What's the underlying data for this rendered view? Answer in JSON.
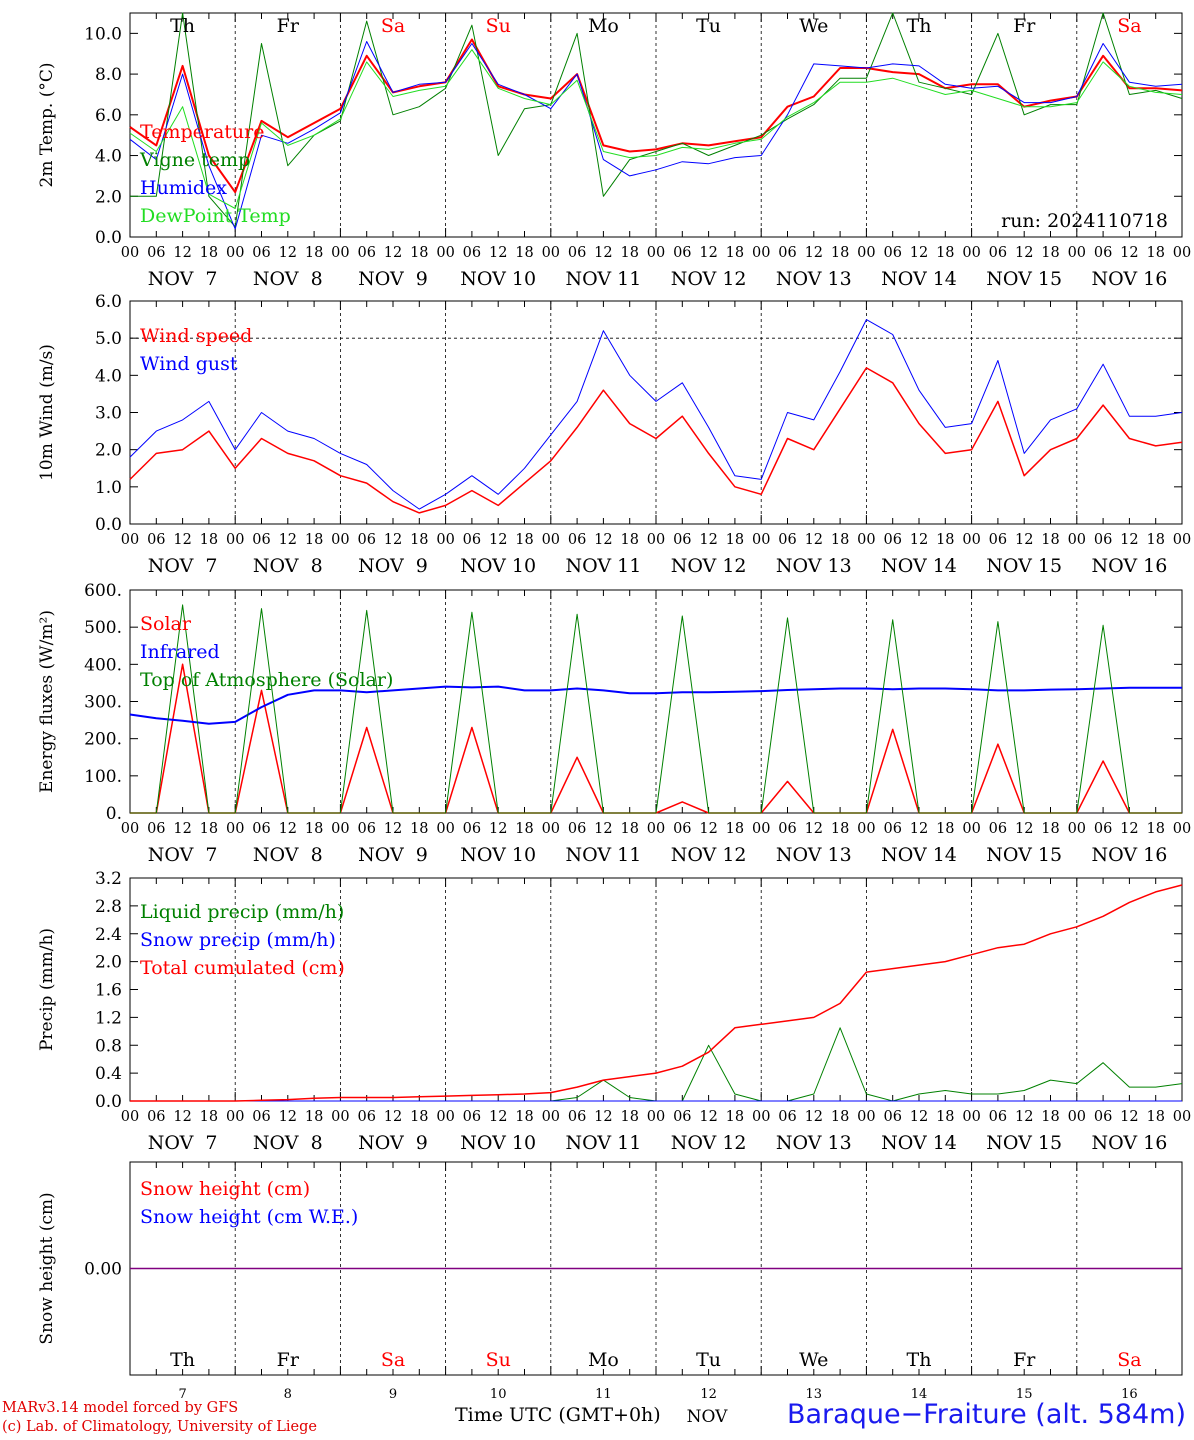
{
  "chart_data": [
    {
      "type": "line",
      "ylabel": "2m Temp. (°C)",
      "ylim": [
        0,
        11
      ],
      "yticks": [
        "0.0",
        "2.0",
        "4.0",
        "6.0",
        "8.0",
        "10.0"
      ],
      "x": [
        0,
        6,
        12,
        18,
        24,
        30,
        36,
        42,
        48,
        54,
        60,
        66,
        72,
        78,
        84,
        90,
        96,
        102,
        108,
        114,
        120,
        126,
        132,
        138,
        144,
        150,
        156,
        162,
        168,
        174,
        180,
        186,
        192,
        198,
        204,
        210,
        216,
        222,
        228,
        234,
        240
      ],
      "annotation": "run: 2024110718",
      "series": [
        {
          "name": "Temperature",
          "color": "#ff0000",
          "width": 2,
          "values": [
            5.4,
            4.5,
            8.4,
            4.0,
            2.2,
            5.7,
            4.9,
            5.6,
            6.3,
            8.9,
            7.1,
            7.4,
            7.6,
            9.7,
            7.4,
            7.0,
            6.8,
            8.0,
            4.5,
            4.2,
            4.3,
            4.6,
            4.5,
            4.7,
            4.9,
            6.4,
            6.9,
            8.3,
            8.3,
            8.1,
            8.0,
            7.3,
            7.5,
            7.5,
            6.4,
            6.7,
            6.9,
            8.9,
            7.3,
            7.3,
            7.2
          ]
        },
        {
          "name": "Vigne temp",
          "color": "#008000",
          "width": 1,
          "values": [
            2.0,
            2.0,
            11.0,
            2.0,
            0.5,
            9.5,
            3.5,
            5.0,
            5.7,
            10.6,
            6.0,
            6.4,
            7.3,
            10.4,
            4.0,
            6.3,
            6.5,
            10.0,
            2.0,
            3.8,
            4.2,
            4.6,
            4.0,
            4.5,
            5.0,
            5.8,
            6.5,
            7.8,
            7.8,
            11.0,
            7.6,
            7.3,
            7.0,
            10.0,
            6.0,
            6.5,
            6.5,
            11.0,
            7.0,
            7.2,
            6.8
          ]
        },
        {
          "name": "Humidex",
          "color": "#0000ff",
          "width": 1,
          "values": [
            4.8,
            3.8,
            8.0,
            3.5,
            0.4,
            5.0,
            4.6,
            5.3,
            6.1,
            9.6,
            7.1,
            7.5,
            7.6,
            9.5,
            7.5,
            7.0,
            6.3,
            8.0,
            3.8,
            3.0,
            3.3,
            3.7,
            3.6,
            3.9,
            4.0,
            6.0,
            8.5,
            8.4,
            8.3,
            8.5,
            8.4,
            7.5,
            7.3,
            7.4,
            6.6,
            6.6,
            6.9,
            9.5,
            7.6,
            7.4,
            7.5
          ]
        },
        {
          "name": "DewPoint Temp",
          "color": "#22dd22",
          "width": 1,
          "values": [
            5.1,
            4.2,
            6.4,
            2.1,
            1.4,
            5.6,
            4.5,
            5.0,
            5.8,
            8.6,
            6.9,
            7.2,
            7.4,
            9.2,
            7.3,
            6.8,
            6.5,
            7.7,
            4.2,
            3.9,
            4.0,
            4.4,
            4.3,
            4.6,
            4.8,
            5.9,
            6.6,
            7.6,
            7.6,
            7.8,
            7.4,
            7.0,
            7.2,
            6.8,
            6.4,
            6.4,
            6.6,
            8.6,
            7.4,
            7.1,
            7.0
          ]
        }
      ]
    },
    {
      "type": "line",
      "ylabel": "10m Wind (m/s)",
      "ylim": [
        0,
        6
      ],
      "yticks": [
        "0.0",
        "1.0",
        "2.0",
        "3.0",
        "4.0",
        "5.0",
        "6.0"
      ],
      "dashed_y": 5,
      "x": [
        0,
        6,
        12,
        18,
        24,
        30,
        36,
        42,
        48,
        54,
        60,
        66,
        72,
        78,
        84,
        90,
        96,
        102,
        108,
        114,
        120,
        126,
        132,
        138,
        144,
        150,
        156,
        162,
        168,
        174,
        180,
        186,
        192,
        198,
        204,
        210,
        216,
        222,
        228,
        234,
        240
      ],
      "series": [
        {
          "name": "Wind speed",
          "color": "#ff0000",
          "width": 1.5,
          "values": [
            1.2,
            1.9,
            2.0,
            2.5,
            1.5,
            2.3,
            1.9,
            1.7,
            1.3,
            1.1,
            0.6,
            0.3,
            0.5,
            0.9,
            0.5,
            1.1,
            1.7,
            2.6,
            3.6,
            2.7,
            2.3,
            2.9,
            1.9,
            1.0,
            0.8,
            2.3,
            2.0,
            3.1,
            4.2,
            3.8,
            2.7,
            1.9,
            2.0,
            3.3,
            1.3,
            2.0,
            2.3,
            3.2,
            2.3,
            2.1,
            2.2
          ]
        },
        {
          "name": "Wind gust",
          "color": "#0000ff",
          "width": 1,
          "values": [
            1.8,
            2.5,
            2.8,
            3.3,
            2.0,
            3.0,
            2.5,
            2.3,
            1.9,
            1.6,
            0.9,
            0.4,
            0.8,
            1.3,
            0.8,
            1.5,
            2.4,
            3.3,
            5.2,
            4.0,
            3.3,
            3.8,
            2.6,
            1.3,
            1.2,
            3.0,
            2.8,
            4.1,
            5.5,
            5.1,
            3.6,
            2.6,
            2.7,
            4.4,
            1.9,
            2.8,
            3.1,
            4.3,
            2.9,
            2.9,
            3.0
          ]
        }
      ]
    },
    {
      "type": "line",
      "ylabel": "Energy fluxes (W/m²)",
      "ylim": [
        0,
        600
      ],
      "yticks": [
        "0.",
        "100.",
        "200.",
        "300.",
        "400.",
        "500.",
        "600."
      ],
      "x": [
        0,
        6,
        12,
        18,
        24,
        30,
        36,
        42,
        48,
        54,
        60,
        66,
        72,
        78,
        84,
        90,
        96,
        102,
        108,
        114,
        120,
        126,
        132,
        138,
        144,
        150,
        156,
        162,
        168,
        174,
        180,
        186,
        192,
        198,
        204,
        210,
        216,
        222,
        228,
        234,
        240
      ],
      "series": [
        {
          "name": "Solar",
          "color": "#ff0000",
          "width": 1.5,
          "values": [
            0,
            0,
            400,
            0,
            0,
            330,
            0,
            0,
            0,
            230,
            0,
            0,
            0,
            230,
            0,
            0,
            0,
            150,
            0,
            0,
            0,
            30,
            0,
            0,
            0,
            85,
            0,
            0,
            0,
            225,
            0,
            0,
            0,
            185,
            0,
            0,
            0,
            140,
            0,
            0,
            0
          ]
        },
        {
          "name": "Infrared",
          "color": "#0000ff",
          "width": 2,
          "values": [
            265,
            255,
            248,
            240,
            245,
            285,
            318,
            330,
            330,
            325,
            330,
            335,
            340,
            338,
            340,
            330,
            330,
            335,
            330,
            322,
            322,
            325,
            325,
            326,
            328,
            331,
            333,
            335,
            335,
            333,
            335,
            335,
            333,
            330,
            330,
            332,
            333,
            335,
            337,
            337,
            337
          ]
        },
        {
          "name": "Top of Atmosphere (Solar)",
          "color": "#008000",
          "width": 1,
          "values": [
            0,
            0,
            560,
            0,
            0,
            550,
            0,
            0,
            0,
            545,
            0,
            0,
            0,
            540,
            0,
            0,
            0,
            535,
            0,
            0,
            0,
            530,
            0,
            0,
            0,
            525,
            0,
            0,
            0,
            520,
            0,
            0,
            0,
            515,
            0,
            0,
            0,
            505,
            0,
            0,
            0
          ]
        }
      ]
    },
    {
      "type": "line",
      "ylabel": "Precip (mm/h)",
      "ylim": [
        0,
        3.2
      ],
      "yticks": [
        "0.0",
        "0.4",
        "0.8",
        "1.2",
        "1.6",
        "2.0",
        "2.4",
        "2.8",
        "3.2"
      ],
      "x": [
        0,
        6,
        12,
        18,
        24,
        30,
        36,
        42,
        48,
        54,
        60,
        66,
        72,
        78,
        84,
        90,
        96,
        102,
        108,
        114,
        120,
        126,
        132,
        138,
        144,
        150,
        156,
        162,
        168,
        174,
        180,
        186,
        192,
        198,
        204,
        210,
        216,
        222,
        228,
        234,
        240
      ],
      "series": [
        {
          "name": "Liquid precip (mm/h)",
          "color": "#008000",
          "width": 1,
          "values": [
            0,
            0,
            0,
            0,
            0,
            0,
            0,
            0,
            0,
            0,
            0,
            0,
            0,
            0,
            0,
            0,
            0,
            0.05,
            0.3,
            0.05,
            0,
            0,
            0.8,
            0.1,
            0,
            0,
            0.1,
            1.05,
            0.1,
            0,
            0.1,
            0.15,
            0.1,
            0.1,
            0.15,
            0.3,
            0.25,
            0.55,
            0.2,
            0.2,
            0.25
          ]
        },
        {
          "name": "Snow precip (mm/h)",
          "color": "#0000ff",
          "width": 1,
          "values": [
            0,
            0,
            0,
            0,
            0,
            0,
            0,
            0,
            0,
            0,
            0,
            0,
            0,
            0,
            0,
            0,
            0,
            0,
            0,
            0,
            0,
            0,
            0,
            0,
            0,
            0,
            0,
            0,
            0,
            0,
            0,
            0,
            0,
            0,
            0,
            0,
            0,
            0,
            0,
            0,
            0
          ]
        },
        {
          "name": "Total cumulated (cm)",
          "color": "#ff0000",
          "width": 1.5,
          "values": [
            0,
            0,
            0,
            0,
            0,
            0.01,
            0.02,
            0.04,
            0.05,
            0.05,
            0.05,
            0.06,
            0.07,
            0.08,
            0.09,
            0.1,
            0.12,
            0.2,
            0.3,
            0.35,
            0.4,
            0.5,
            0.7,
            1.05,
            1.1,
            1.15,
            1.2,
            1.4,
            1.85,
            1.9,
            1.95,
            2.0,
            2.1,
            2.2,
            2.25,
            2.4,
            2.5,
            2.65,
            2.85,
            3.0,
            3.1
          ]
        }
      ]
    },
    {
      "type": "line",
      "ylabel": "Snow height (cm)",
      "ylim": [
        -1,
        1
      ],
      "yticks": [
        "0.00"
      ],
      "x": [
        0,
        240
      ],
      "series": [
        {
          "name": "Snow height (cm)",
          "color": "#ff0000",
          "width": 1,
          "values": [
            0,
            0
          ],
          "draw": false
        },
        {
          "name": "Snow height (cm W.E.)",
          "color": "#0000ff",
          "width": 1,
          "values": [
            0,
            0
          ],
          "draw": false
        },
        {
          "name": "",
          "color": "#800080",
          "width": 1.5,
          "values": [
            0,
            0
          ],
          "draw": true
        }
      ]
    }
  ],
  "time_axis": {
    "hour_labels": [
      "00",
      "06",
      "12",
      "18"
    ],
    "final_hour": "00",
    "dates": [
      "NOV  7",
      "NOV  8",
      "NOV  9",
      "NOV 10",
      "NOV 11",
      "NOV 12",
      "NOV 13",
      "NOV 14",
      "NOV 15",
      "NOV 16"
    ],
    "days_of_week": [
      "Th",
      "Fr",
      "Sa",
      "Su",
      "Mo",
      "Tu",
      "We",
      "Th",
      "Fr",
      "Sa"
    ],
    "weekday_color": "#000000",
    "weekend_color": "#ff0000",
    "day_numbers": [
      "7",
      "8",
      "9",
      "10",
      "11",
      "12",
      "13",
      "14",
      "15",
      "16"
    ],
    "bottom_nov": "NOV"
  },
  "footer": {
    "credit_line1": "MARv3.14 model forced by GFS",
    "credit_line2": "(c) Lab. of Climatology, University of Liege",
    "time_label": "Time UTC (GMT+0h)",
    "station": "Baraque−Fraiture (alt. 584m)"
  }
}
